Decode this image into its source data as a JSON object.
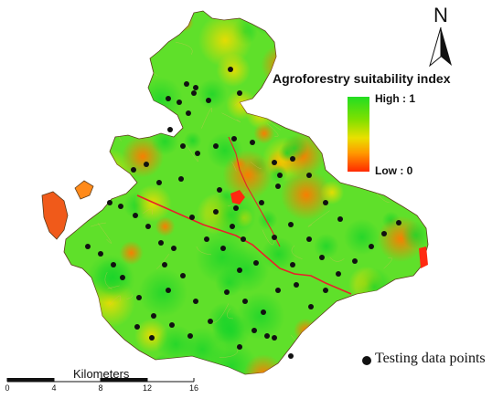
{
  "legend": {
    "title": "Agroforestry suitability index",
    "high_label": "High : 1",
    "low_label": "Low : 0",
    "colors": [
      "#22dd22",
      "#7ee000",
      "#e9e000",
      "#ff9a00",
      "#ff2a00"
    ]
  },
  "north_arrow": {
    "letter": "N",
    "icon": "north-arrow-icon"
  },
  "scale_bar": {
    "title": "Kilometers",
    "ticks": [
      "0",
      "4",
      "8",
      "12",
      "16"
    ]
  },
  "points_legend": {
    "label": "Testing data points",
    "color": "#111111"
  },
  "palette": {
    "suitable": "#4ee32a",
    "low": "#ff2a00",
    "river": "#e8202a"
  }
}
